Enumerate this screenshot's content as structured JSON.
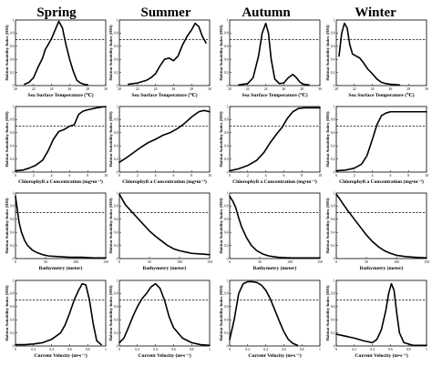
{
  "chart_data": [
    {
      "title": "Spring",
      "xlabel": "Sea Surface Temperature (℃)",
      "ylabel": "Habitat Suitability Index (HSI)",
      "type": "line",
      "xlim": [
        20,
        30
      ],
      "ylim": [
        0,
        1
      ],
      "xticks": [
        "20",
        "22",
        "24",
        "26",
        "28",
        "30"
      ],
      "yticks": [
        "0",
        "0.2",
        "0.4",
        "0.6",
        "0.8",
        "1"
      ],
      "threshold": 0.7,
      "x": [
        21,
        21.5,
        22,
        22.5,
        23,
        23.3,
        23.6,
        24,
        24.4,
        24.8,
        25.2,
        25.6,
        26,
        26.4,
        26.8,
        27.2,
        27.6,
        28
      ],
      "y": [
        0.02,
        0.05,
        0.12,
        0.28,
        0.42,
        0.55,
        0.62,
        0.72,
        0.85,
        0.98,
        0.88,
        0.62,
        0.4,
        0.22,
        0.08,
        0.04,
        0.02,
        0.01
      ]
    },
    {
      "title": "Summer",
      "xlabel": "Sea Surface Temperature (℃)",
      "ylabel": "Habitat Suitability Index (HSI)",
      "type": "line",
      "xlim": [
        20,
        30
      ],
      "ylim": [
        0,
        1
      ],
      "xticks": [
        "20",
        "22",
        "24",
        "26",
        "28",
        "30"
      ],
      "yticks": [
        "0",
        "0.2",
        "0.4",
        "0.6",
        "0.8",
        "1"
      ],
      "threshold": 0.7,
      "x": [
        21,
        22,
        23,
        23.5,
        24,
        24.5,
        25,
        25.5,
        26,
        26.5,
        27,
        27.5,
        28,
        28.4,
        28.8,
        29.2,
        29.6
      ],
      "y": [
        0.02,
        0.04,
        0.08,
        0.12,
        0.18,
        0.3,
        0.4,
        0.42,
        0.38,
        0.45,
        0.62,
        0.75,
        0.85,
        0.95,
        0.9,
        0.75,
        0.65
      ]
    },
    {
      "title": "Autumn",
      "xlabel": "Sea Surface Temperature (℃)",
      "ylabel": "Habitat Suitability Index (HSI)",
      "type": "line",
      "xlim": [
        20,
        30
      ],
      "ylim": [
        0,
        1
      ],
      "xticks": [
        "20",
        "22",
        "24",
        "26",
        "28",
        "30"
      ],
      "yticks": [
        "0",
        "0.2",
        "0.4",
        "0.6",
        "0.8",
        "1"
      ],
      "threshold": 0.7,
      "x": [
        21,
        22,
        22.6,
        23.2,
        23.6,
        24,
        24.3,
        24.6,
        25,
        25.5,
        26,
        26.5,
        27,
        27.4,
        27.8,
        28.2,
        28.8
      ],
      "y": [
        0.01,
        0.03,
        0.12,
        0.45,
        0.8,
        0.95,
        0.8,
        0.4,
        0.1,
        0.03,
        0.04,
        0.12,
        0.17,
        0.12,
        0.05,
        0.02,
        0.01
      ]
    },
    {
      "title": "Winter",
      "xlabel": "Sea Surface Temperature (℃)",
      "ylabel": "Habitat Suitability Index (HSI)",
      "type": "line",
      "xlim": [
        20,
        30
      ],
      "ylim": [
        0,
        1
      ],
      "xticks": [
        "20",
        "22",
        "24",
        "26",
        "28",
        "30"
      ],
      "yticks": [
        "0",
        "0.2",
        "0.4",
        "0.6",
        "0.8",
        "1"
      ],
      "threshold": 0.7,
      "x": [
        20.3,
        20.6,
        20.9,
        21.2,
        21.5,
        21.8,
        22.2,
        22.6,
        23,
        23.5,
        24,
        24.5,
        25,
        25.5,
        26,
        27
      ],
      "y": [
        0.45,
        0.8,
        0.95,
        0.88,
        0.62,
        0.48,
        0.45,
        0.42,
        0.35,
        0.25,
        0.18,
        0.1,
        0.05,
        0.03,
        0.02,
        0.01
      ]
    },
    {
      "title": "",
      "xlabel": "Chlorophyll a Concentration (mg•m⁻³)",
      "ylabel": "Habitat Suitability Index (HSI)",
      "type": "line",
      "xlim": [
        0,
        10
      ],
      "ylim": [
        0,
        1
      ],
      "xticks": [
        "0",
        "2",
        "4",
        "6",
        "8",
        "10"
      ],
      "yticks": [
        "0",
        "0.2",
        "0.4",
        "0.6",
        "0.8",
        "1"
      ],
      "threshold": 0.7,
      "x": [
        0,
        0.8,
        1.5,
        2.2,
        3,
        3.6,
        4.2,
        4.8,
        5.4,
        6,
        6.5,
        7,
        7.5,
        8,
        9,
        10
      ],
      "y": [
        0.02,
        0.03,
        0.06,
        0.1,
        0.18,
        0.32,
        0.5,
        0.62,
        0.65,
        0.7,
        0.72,
        0.88,
        0.93,
        0.95,
        0.98,
        1
      ]
    },
    {
      "title": "",
      "xlabel": "Chlorophyll a Concentration (mg•m⁻³)",
      "ylabel": "Habitat Suitability Index (HSI)",
      "type": "line",
      "xlim": [
        0,
        10
      ],
      "ylim": [
        0,
        1
      ],
      "xticks": [
        "0",
        "2",
        "4",
        "6",
        "8",
        "10"
      ],
      "yticks": [
        "0",
        "0.2",
        "0.4",
        "0.6",
        "0.8",
        "1"
      ],
      "threshold": 0.7,
      "x": [
        0,
        0.8,
        1.6,
        2.4,
        3.2,
        4,
        4.8,
        5.6,
        6.4,
        7.2,
        8,
        8.8,
        9.4,
        10
      ],
      "y": [
        0.15,
        0.22,
        0.3,
        0.38,
        0.45,
        0.5,
        0.56,
        0.6,
        0.66,
        0.74,
        0.84,
        0.92,
        0.94,
        0.92
      ]
    },
    {
      "title": "",
      "xlabel": "Chlorophyll a Concentration (mg•m⁻³)",
      "ylabel": "Habitat Suitability Index (HSI)",
      "type": "line",
      "xlim": [
        0,
        10
      ],
      "ylim": [
        0,
        1
      ],
      "xticks": [
        "0",
        "2",
        "4",
        "6",
        "8",
        "10"
      ],
      "yticks": [
        "0",
        "0.2",
        "0.4",
        "0.6",
        "0.8",
        "1"
      ],
      "threshold": 0.7,
      "x": [
        0,
        1,
        2,
        3,
        3.8,
        4.5,
        5.2,
        5.8,
        6.4,
        7,
        7.6,
        8.2,
        9,
        10
      ],
      "y": [
        0.02,
        0.05,
        0.1,
        0.18,
        0.3,
        0.45,
        0.58,
        0.68,
        0.82,
        0.92,
        0.97,
        0.98,
        0.98,
        0.98
      ]
    },
    {
      "title": "",
      "xlabel": "Chlorophyll a Concentration (mg•m⁻³)",
      "ylabel": "Habitat Suitability Index (HSI)",
      "type": "line",
      "xlim": [
        0,
        10
      ],
      "ylim": [
        0,
        1
      ],
      "xticks": [
        "0",
        "2",
        "4",
        "6",
        "8",
        "10"
      ],
      "yticks": [
        "0",
        "0.2",
        "0.4",
        "0.6",
        "0.8",
        "1"
      ],
      "threshold": 0.7,
      "x": [
        0,
        1,
        2,
        2.8,
        3.4,
        4,
        4.5,
        5,
        5.5,
        6,
        7,
        8,
        9,
        10
      ],
      "y": [
        0.02,
        0.03,
        0.06,
        0.12,
        0.25,
        0.5,
        0.72,
        0.86,
        0.9,
        0.92,
        0.92,
        0.92,
        0.92,
        0.92
      ]
    },
    {
      "title": "",
      "xlabel": "Bathymetry (meter)",
      "ylabel": "Habitat Suitability Index (HSI)",
      "type": "line",
      "xlim": [
        0,
        150
      ],
      "ylim": [
        0,
        1
      ],
      "xticks": [
        "0",
        "50",
        "100",
        "150"
      ],
      "yticks": [
        "0",
        "0.2",
        "0.4",
        "0.6",
        "0.8",
        "1"
      ],
      "threshold": 0.7,
      "x": [
        0,
        3,
        6,
        10,
        15,
        20,
        28,
        36,
        45,
        55,
        70,
        90,
        110,
        130,
        150
      ],
      "y": [
        0.95,
        0.75,
        0.55,
        0.4,
        0.28,
        0.2,
        0.13,
        0.09,
        0.06,
        0.04,
        0.03,
        0.02,
        0.02,
        0.01,
        0.01
      ]
    },
    {
      "title": "",
      "xlabel": "Bathymetry (meter)",
      "ylabel": "Habitat Suitability Index (HSI)",
      "type": "line",
      "xlim": [
        0,
        150
      ],
      "ylim": [
        0,
        1
      ],
      "xticks": [
        "0",
        "50",
        "100",
        "150"
      ],
      "yticks": [
        "0",
        "0.2",
        "0.4",
        "0.6",
        "0.8",
        "1"
      ],
      "threshold": 0.7,
      "x": [
        0,
        5,
        10,
        20,
        30,
        40,
        50,
        60,
        70,
        80,
        90,
        100,
        110,
        120,
        135,
        150
      ],
      "y": [
        0.98,
        0.9,
        0.82,
        0.72,
        0.62,
        0.52,
        0.42,
        0.34,
        0.27,
        0.2,
        0.15,
        0.12,
        0.1,
        0.08,
        0.07,
        0.06
      ]
    },
    {
      "title": "",
      "xlabel": "Bathymetry (meter)",
      "ylabel": "Habitat Suitability Index (HSI)",
      "type": "line",
      "xlim": [
        0,
        150
      ],
      "ylim": [
        0,
        1
      ],
      "xticks": [
        "0",
        "50",
        "100",
        "150"
      ],
      "yticks": [
        "0",
        "0.2",
        "0.4",
        "0.6",
        "0.8",
        "1"
      ],
      "threshold": 0.7,
      "x": [
        0,
        5,
        10,
        15,
        20,
        28,
        36,
        45,
        55,
        65,
        80,
        100,
        120,
        150
      ],
      "y": [
        0.95,
        0.88,
        0.78,
        0.62,
        0.48,
        0.32,
        0.2,
        0.12,
        0.07,
        0.04,
        0.02,
        0.01,
        0.01,
        0.01
      ]
    },
    {
      "title": "",
      "xlabel": "Bathymetry (meter)",
      "ylabel": "Habitat Suitability Index (HSI)",
      "type": "line",
      "xlim": [
        0,
        150
      ],
      "ylim": [
        0,
        1
      ],
      "xticks": [
        "0",
        "50",
        "100",
        "150"
      ],
      "yticks": [
        "0",
        "0.2",
        "0.4",
        "0.6",
        "0.8",
        "1"
      ],
      "threshold": 0.7,
      "x": [
        0,
        5,
        10,
        20,
        30,
        40,
        50,
        60,
        70,
        80,
        90,
        100,
        115,
        130,
        150
      ],
      "y": [
        0.98,
        0.92,
        0.85,
        0.72,
        0.6,
        0.48,
        0.36,
        0.26,
        0.18,
        0.12,
        0.08,
        0.05,
        0.03,
        0.02,
        0.01
      ]
    },
    {
      "title": "",
      "xlabel": "Current Velocity (m•s⁻¹)",
      "ylabel": "Habitat Suitability Index (HSI)",
      "type": "line",
      "xlim": [
        0,
        1
      ],
      "ylim": [
        0,
        1
      ],
      "xticks": [
        "0",
        "0.2",
        "0.4",
        "0.6",
        "0.8",
        "1"
      ],
      "yticks": [
        "0",
        "0.2",
        "0.4",
        "0.6",
        "0.8",
        "1"
      ],
      "threshold": 0.7,
      "x": [
        0,
        0.1,
        0.2,
        0.3,
        0.4,
        0.5,
        0.55,
        0.6,
        0.65,
        0.7,
        0.74,
        0.78,
        0.82,
        0.86,
        0.9,
        0.95
      ],
      "y": [
        0.02,
        0.02,
        0.03,
        0.05,
        0.1,
        0.2,
        0.32,
        0.5,
        0.7,
        0.85,
        0.95,
        0.93,
        0.7,
        0.35,
        0.08,
        0.02
      ]
    },
    {
      "title": "",
      "xlabel": "Current Velocity (m•s⁻¹)",
      "ylabel": "Habitat Suitability Index (HSI)",
      "type": "line",
      "xlim": [
        0,
        1
      ],
      "ylim": [
        0,
        1
      ],
      "xticks": [
        "0",
        "0.2",
        "0.4",
        "0.6",
        "0.8",
        "1"
      ],
      "yticks": [
        "0",
        "0.2",
        "0.4",
        "0.6",
        "0.8",
        "1"
      ],
      "threshold": 0.7,
      "x": [
        0,
        0.05,
        0.1,
        0.15,
        0.2,
        0.25,
        0.3,
        0.35,
        0.4,
        0.45,
        0.5,
        0.55,
        0.6,
        0.7,
        0.8,
        0.9,
        1
      ],
      "y": [
        0.05,
        0.12,
        0.28,
        0.45,
        0.6,
        0.72,
        0.8,
        0.9,
        0.95,
        0.88,
        0.7,
        0.45,
        0.28,
        0.12,
        0.05,
        0.02,
        0.01
      ]
    },
    {
      "title": "",
      "xlabel": "Current Velocity (m•s⁻¹)",
      "ylabel": "Habitat Suitability Index (HSI)",
      "type": "line",
      "xlim": [
        0,
        1
      ],
      "ylim": [
        0,
        1
      ],
      "xticks": [
        "0",
        "0.2",
        "0.4",
        "0.6",
        "0.8",
        "1"
      ],
      "yticks": [
        "0",
        "0.2",
        "0.4",
        "0.6",
        "0.8",
        "1"
      ],
      "threshold": 0.7,
      "x": [
        0,
        0.05,
        0.1,
        0.15,
        0.2,
        0.25,
        0.3,
        0.35,
        0.4,
        0.45,
        0.5,
        0.55,
        0.6,
        0.65,
        0.7,
        0.75
      ],
      "y": [
        0.1,
        0.4,
        0.8,
        0.95,
        0.98,
        0.98,
        0.97,
        0.93,
        0.85,
        0.72,
        0.55,
        0.38,
        0.22,
        0.1,
        0.04,
        0.01
      ]
    },
    {
      "title": "",
      "xlabel": "Current Velocity (m•s⁻¹)",
      "ylabel": "Habitat Suitability Index (HSI)",
      "type": "line",
      "xlim": [
        0,
        1
      ],
      "ylim": [
        0,
        1
      ],
      "xticks": [
        "0",
        "0.2",
        "0.4",
        "0.6",
        "0.8",
        "1"
      ],
      "yticks": [
        "0",
        "0.2",
        "0.4",
        "0.6",
        "0.8",
        "1"
      ],
      "threshold": 0.7,
      "x": [
        0,
        0.1,
        0.2,
        0.3,
        0.4,
        0.45,
        0.5,
        0.55,
        0.58,
        0.61,
        0.64,
        0.67,
        0.7,
        0.75,
        0.85,
        1
      ],
      "y": [
        0.18,
        0.15,
        0.12,
        0.08,
        0.05,
        0.1,
        0.25,
        0.55,
        0.8,
        0.95,
        0.85,
        0.5,
        0.2,
        0.05,
        0.01,
        0.01
      ]
    }
  ],
  "colors": {
    "curve": "#000000",
    "threshold_line": "#000000",
    "background": "#ffffff"
  }
}
